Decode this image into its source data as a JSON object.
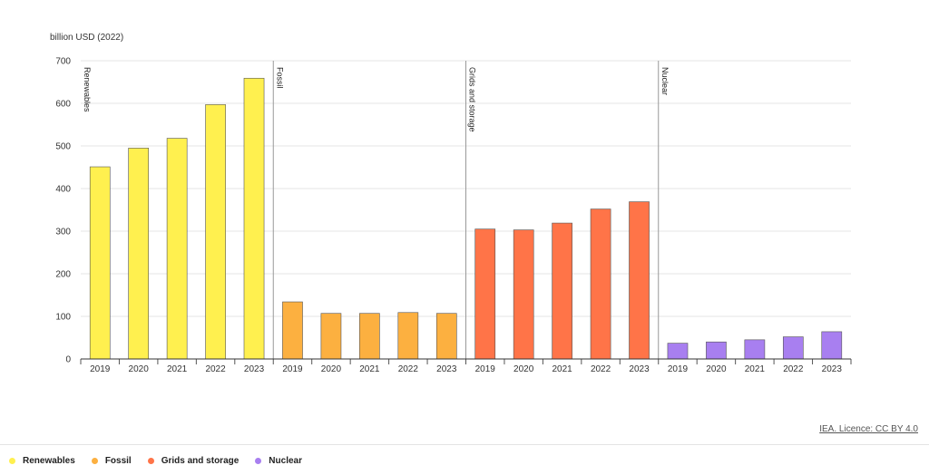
{
  "chart_data": {
    "type": "bar",
    "ylabel": "billion USD (2022)",
    "ylim": [
      0,
      700
    ],
    "yticks": [
      0,
      100,
      200,
      300,
      400,
      500,
      600,
      700
    ],
    "grid": true,
    "legend_position": "bottom-left",
    "categories": [
      "2019",
      "2020",
      "2021",
      "2022",
      "2023"
    ],
    "series": [
      {
        "name": "Renewables",
        "color": "#fff04f",
        "values": [
          451,
          495,
          518,
          597,
          659
        ]
      },
      {
        "name": "Fossil",
        "color": "#fcb040",
        "values": [
          134,
          107,
          107,
          109,
          107
        ]
      },
      {
        "name": "Grids and storage",
        "color": "#ff7448",
        "values": [
          305,
          303,
          319,
          352,
          369
        ]
      },
      {
        "name": "Nuclear",
        "color": "#a87ff0",
        "values": [
          37,
          40,
          45,
          52,
          64
        ]
      }
    ]
  },
  "credit": "IEA. Licence: CC BY 4.0"
}
